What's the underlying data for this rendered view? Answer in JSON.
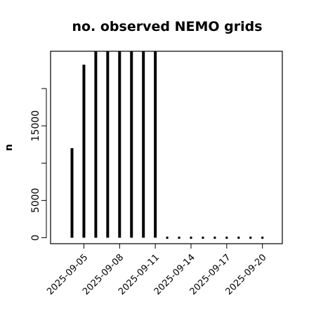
{
  "chart_data": {
    "type": "bar",
    "title": "no. observed NEMO grids",
    "xlabel": "",
    "ylabel": "n",
    "x": [
      "2025-09-04",
      "2025-09-05",
      "2025-09-06",
      "2025-09-07",
      "2025-09-08",
      "2025-09-09",
      "2025-09-10",
      "2025-09-11",
      "2025-09-12",
      "2025-09-13",
      "2025-09-14",
      "2025-09-15",
      "2025-09-16",
      "2025-09-17",
      "2025-09-18",
      "2025-09-19",
      "2025-09-20"
    ],
    "values": [
      12000,
      23200,
      25000,
      25000,
      25000,
      25000,
      25000,
      25000,
      0,
      0,
      0,
      0,
      0,
      0,
      0,
      0,
      0
    ],
    "ylim": [
      0,
      25000
    ],
    "y_ticks": [
      0,
      5000,
      15000
    ],
    "x_ticks": [
      "2025-09-05",
      "2025-09-08",
      "2025-09-11",
      "2025-09-14",
      "2025-09-17",
      "2025-09-20"
    ],
    "grid": false,
    "colors": {
      "bar": "#000000",
      "axis": "#000000"
    }
  }
}
